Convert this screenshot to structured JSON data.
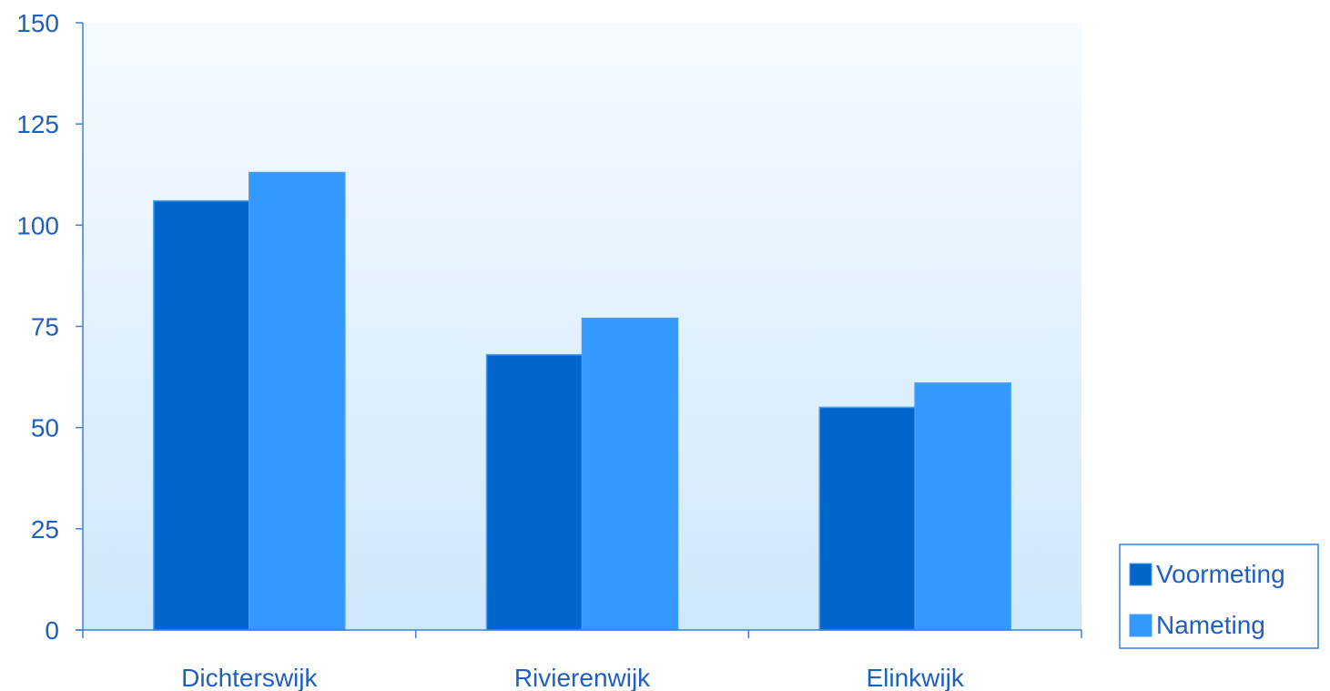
{
  "chart_data": {
    "type": "bar",
    "categories": [
      "Dichterswijk",
      "Rivierenwijk",
      "Elinkwijk"
    ],
    "series": [
      {
        "name": "Voormeting",
        "values": [
          106,
          68,
          55
        ],
        "color": "#0066cc"
      },
      {
        "name": "Nameting",
        "values": [
          113,
          77,
          61
        ],
        "color": "#3399ff"
      }
    ],
    "ylim": [
      0,
      150
    ],
    "yticks": [
      0,
      25,
      50,
      75,
      100,
      125,
      150
    ],
    "grid": false,
    "legend": "right",
    "axis_color": "#3a7fd8",
    "text_color": "#1f5fbf",
    "background_gradient": [
      "#f6fbff",
      "#cfe8fc"
    ]
  }
}
